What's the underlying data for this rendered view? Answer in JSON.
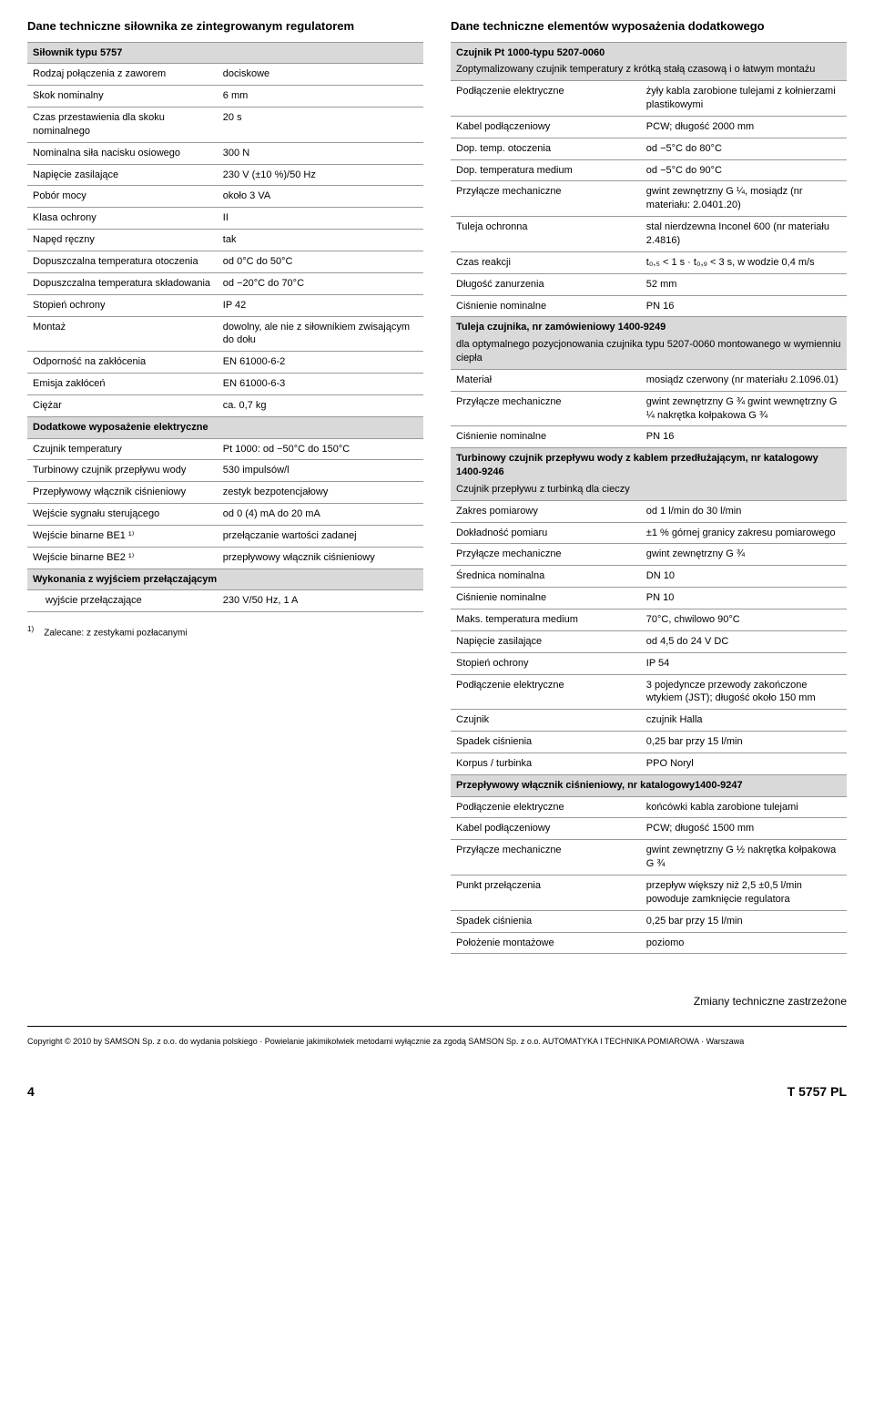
{
  "left": {
    "title": "Dane techniczne siłownika ze zintegrowanym regulatorem",
    "section1": "Siłownik typu 5757",
    "rows1": [
      [
        "Rodzaj połączenia z zaworem",
        "dociskowe"
      ],
      [
        "Skok nominalny",
        "6 mm"
      ],
      [
        "Czas przestawienia dla skoku nominalnego",
        "20 s"
      ],
      [
        "Nominalna siła nacisku osiowego",
        "300 N"
      ],
      [
        "Napięcie zasilające",
        "230 V (±10 %)/50 Hz"
      ],
      [
        "Pobór mocy",
        "około 3 VA"
      ],
      [
        "Klasa ochrony",
        "II"
      ],
      [
        "Napęd ręczny",
        "tak"
      ],
      [
        "Dopuszczalna temperatura otoczenia",
        "od 0°C do 50°C"
      ],
      [
        "Dopuszczalna temperatura składowania",
        "od −20°C do 70°C"
      ],
      [
        "Stopień ochrony",
        "IP 42"
      ],
      [
        "Montaż",
        "dowolny, ale nie z siłownikiem zwisającym do dołu"
      ],
      [
        "Odporność na zakłócenia",
        "EN 61000-6-2"
      ],
      [
        "Emisja zakłóceń",
        "EN 61000-6-3"
      ],
      [
        "Ciężar",
        "ca. 0,7 kg"
      ]
    ],
    "section2": "Dodatkowe wyposażenie elektryczne",
    "rows2": [
      [
        "Czujnik temperatury",
        "Pt 1000: od −50°C do 150°C"
      ],
      [
        "Turbinowy czujnik przepływu wody",
        "530 impulsów/l"
      ],
      [
        "Przepływowy włącznik ciśnieniowy",
        "zestyk bezpotencjałowy"
      ],
      [
        "Wejście sygnału sterującego",
        "od 0 (4) mA do 20 mA"
      ],
      [
        "Wejście binarne BE1 ¹⁾",
        "przełączanie wartości zadanej"
      ],
      [
        "Wejście binarne BE2 ¹⁾",
        "przepływowy włącznik ciśnieniowy"
      ]
    ],
    "section3": "Wykonania z wyjściem przełączającym",
    "rows3": [
      [
        "wyjście przełączające",
        "230 V/50 Hz, 1 A"
      ]
    ],
    "footnote": "Zalecane: z zestykami pozłacanymi",
    "footnote_mark": "1)"
  },
  "right": {
    "title": "Dane techniczne elementów wyposażenia dodatkowego",
    "section1": "Czujnik Pt 1000-typu 5207-0060",
    "sub1": "Zoptymalizowany czujnik temperatury z krótką stałą czasową i o łatwym montażu",
    "rows1": [
      [
        "Podłączenie elektryczne",
        "żyły kabla zarobione tulejami z kołnierzami plastikowymi"
      ],
      [
        "Kabel podłączeniowy",
        "PCW; długość 2000 mm"
      ],
      [
        "Dop. temp. otoczenia",
        "od −5°C do 80°C"
      ],
      [
        "Dop. temperatura medium",
        "od −5°C do 90°C"
      ],
      [
        "Przyłącze mechaniczne",
        "gwint zewnętrzny G ¼, mosiądz (nr materiału: 2.0401.20)"
      ],
      [
        "Tuleja ochronna",
        "stal nierdzewna Inconel 600 (nr materiału 2.4816)"
      ],
      [
        "Czas reakcji",
        "t₀,₅ < 1 s · t₀,₉ < 3 s, w wodzie 0,4 m/s"
      ],
      [
        "Długość zanurzenia",
        "52 mm"
      ],
      [
        "Ciśnienie nominalne",
        "PN 16"
      ]
    ],
    "section2": "Tuleja czujnika, nr zamówieniowy 1400-9249",
    "sub2": "dla optymalnego pozycjonowania czujnika typu 5207-0060 montowanego w wymienniu ciepła",
    "rows2": [
      [
        "Materiał",
        "mosiądz czerwony (nr materiału 2.1096.01)"
      ],
      [
        "Przyłącze mechaniczne",
        "gwint zewnętrzny G ¾ gwint wewnętrzny G ¼ nakrętka kołpakowa G ¾"
      ],
      [
        "Ciśnienie nominalne",
        "PN 16"
      ]
    ],
    "section3": "Turbinowy czujnik przepływu wody z kablem przedłużającym, nr katalogowy 1400-9246",
    "sub3": "Czujnik przepływu z turbinką dla cieczy",
    "rows3": [
      [
        "Zakres pomiarowy",
        "od 1 l/min do 30 l/min"
      ],
      [
        "Dokładność pomiaru",
        "±1 % górnej granicy zakresu pomiarowego"
      ],
      [
        "Przyłącze mechaniczne",
        "gwint zewnętrzny G ¾"
      ],
      [
        "Średnica nominalna",
        "DN 10"
      ],
      [
        "Ciśnienie nominalne",
        "PN 10"
      ],
      [
        "Maks. temperatura medium",
        "70°C, chwilowo 90°C"
      ],
      [
        "Napięcie zasilające",
        "od 4,5 do 24 V DC"
      ],
      [
        "Stopień ochrony",
        "IP 54"
      ],
      [
        "Podłączenie elektryczne",
        "3 pojedyncze przewody zakończone wtykiem (JST); długość około 150 mm"
      ],
      [
        "Czujnik",
        "czujnik Halla"
      ],
      [
        "Spadek ciśnienia",
        "0,25 bar przy 15 l/min"
      ],
      [
        "Korpus / turbinka",
        "PPO Noryl"
      ]
    ],
    "section4": "Przepływowy włącznik ciśnieniowy, nr katalogowy1400-9247",
    "rows4": [
      [
        "Podłączenie elektryczne",
        "końcówki kabla zarobione tulejami"
      ],
      [
        "Kabel podłączeniowy",
        "PCW; długość 1500 mm"
      ],
      [
        "Przyłącze mechaniczne",
        "gwint zewnętrzny G ½ nakrętka kołpakowa G ¾"
      ],
      [
        "Punkt przełączenia",
        "przepływ większy niż 2,5 ±0,5 l/min powoduje zamknięcie regulatora"
      ],
      [
        "Spadek ciśnienia",
        "0,25 bar przy 15 l/min"
      ],
      [
        "Położenie montażowe",
        "poziomo"
      ]
    ]
  },
  "rightNote": "Zmiany techniczne zastrzeżone",
  "copyright": "Copyright © 2010 by SAMSON Sp. z o.o. do wydania polskiego · Powielanie jakimikolwiek metodami wyłącznie za zgodą SAMSON Sp. z o.o. AUTOMATYKA I TECHNIKA POMIAROWA · Warszawa",
  "pageNum": "4",
  "docNum": "T 5757 PL"
}
